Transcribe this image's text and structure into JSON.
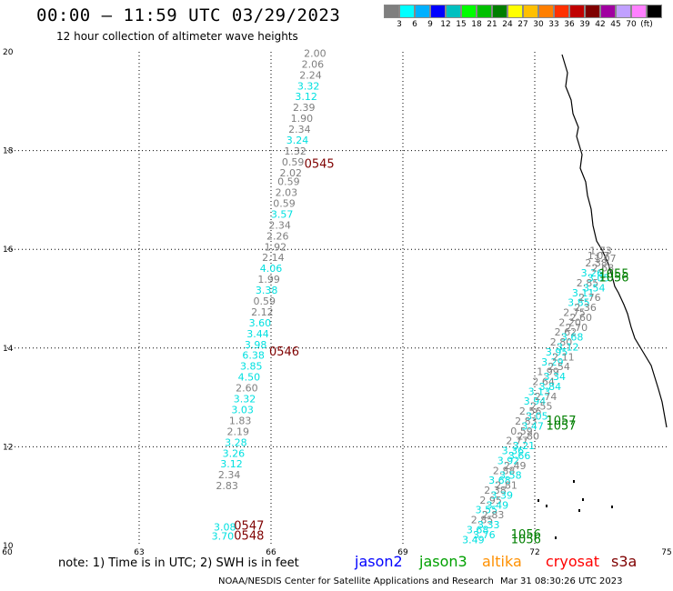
{
  "header": {
    "title": "00:00 – 11:59 UTC 03/29/2023",
    "subtitle": "12 hour collection of altimeter wave heights"
  },
  "colorbar": {
    "colors": [
      "#7f7f7f",
      "#00ffff",
      "#00b0ff",
      "#0000ff",
      "#00c0c0",
      "#00ff00",
      "#00c000",
      "#007f00",
      "#ffff00",
      "#ffc000",
      "#ff7f00",
      "#ff3000",
      "#c00000",
      "#7f0000",
      "#a000a0",
      "#c0a0ff",
      "#ff80ff",
      "#000000"
    ],
    "labels": [
      "3",
      "6",
      "9",
      "12",
      "15",
      "18",
      "21",
      "24",
      "27",
      "30",
      "33",
      "36",
      "39",
      "42",
      "45",
      "70",
      "(ft)"
    ]
  },
  "chart_data": {
    "type": "scatter",
    "xlim": [
      60,
      75
    ],
    "ylim": [
      10,
      20
    ],
    "xticks": [
      "60",
      "63",
      "66",
      "69",
      "72",
      "75"
    ],
    "yticks": [
      "10",
      "12",
      "14",
      "16",
      "18",
      "20"
    ],
    "grid": true,
    "track_labels": [
      {
        "x": 67.1,
        "y": 17.65,
        "text": "0545",
        "color": "#7f0000"
      },
      {
        "x": 66.3,
        "y": 13.85,
        "text": "0546",
        "color": "#7f0000"
      },
      {
        "x": 65.5,
        "y": 10.32,
        "text": "0547",
        "color": "#7f0000"
      },
      {
        "x": 65.5,
        "y": 10.12,
        "text": "0548",
        "color": "#7f0000"
      },
      {
        "x": 73.8,
        "y": 15.42,
        "text": "1055",
        "color": "#007f00"
      },
      {
        "x": 73.8,
        "y": 15.35,
        "text": "1056",
        "color": "#007f00"
      },
      {
        "x": 72.6,
        "y": 12.45,
        "text": "1057",
        "color": "#007f00"
      },
      {
        "x": 72.6,
        "y": 12.35,
        "text": "1057",
        "color": "#007f00"
      },
      {
        "x": 71.8,
        "y": 10.15,
        "text": "1056",
        "color": "#007f00"
      },
      {
        "x": 71.8,
        "y": 10.05,
        "text": "1056",
        "color": "#007f00"
      }
    ],
    "series": [
      {
        "color_low": "#7f7f7f",
        "color_mid": "#00e0e0",
        "points": [
          {
            "x": 67.0,
            "y": 19.9,
            "v": "2.00"
          },
          {
            "x": 66.95,
            "y": 19.68,
            "v": "2.06"
          },
          {
            "x": 66.9,
            "y": 19.46,
            "v": "2.24"
          },
          {
            "x": 66.85,
            "y": 19.24,
            "v": "3.32"
          },
          {
            "x": 66.8,
            "y": 19.02,
            "v": "3.12"
          },
          {
            "x": 66.75,
            "y": 18.8,
            "v": "2.39"
          },
          {
            "x": 66.7,
            "y": 18.58,
            "v": "1.90"
          },
          {
            "x": 66.65,
            "y": 18.36,
            "v": "2.34"
          },
          {
            "x": 66.6,
            "y": 18.14,
            "v": "3.24"
          },
          {
            "x": 66.55,
            "y": 17.92,
            "v": "1.32"
          },
          {
            "x": 66.5,
            "y": 17.7,
            "v": "0.59"
          },
          {
            "x": 66.45,
            "y": 17.48,
            "v": "2.02"
          },
          {
            "x": 66.4,
            "y": 17.3,
            "v": "0.59"
          },
          {
            "x": 66.35,
            "y": 17.08,
            "v": "2.03"
          },
          {
            "x": 66.3,
            "y": 16.86,
            "v": "0.59"
          },
          {
            "x": 66.25,
            "y": 16.64,
            "v": "3.57"
          },
          {
            "x": 66.2,
            "y": 16.42,
            "v": "2.34"
          },
          {
            "x": 66.15,
            "y": 16.2,
            "v": "2.26"
          },
          {
            "x": 66.1,
            "y": 15.98,
            "v": "1.92"
          },
          {
            "x": 66.05,
            "y": 15.76,
            "v": "2.14"
          },
          {
            "x": 66.0,
            "y": 15.54,
            "v": "4.06"
          },
          {
            "x": 65.95,
            "y": 15.32,
            "v": "1.99"
          },
          {
            "x": 65.9,
            "y": 15.1,
            "v": "3.38"
          },
          {
            "x": 65.85,
            "y": 14.88,
            "v": "0.59"
          },
          {
            "x": 65.8,
            "y": 14.66,
            "v": "2.12"
          },
          {
            "x": 65.75,
            "y": 14.44,
            "v": "3.60"
          },
          {
            "x": 65.7,
            "y": 14.22,
            "v": "3.44"
          },
          {
            "x": 65.65,
            "y": 14.0,
            "v": "3.98"
          },
          {
            "x": 65.6,
            "y": 13.78,
            "v": "6.38"
          },
          {
            "x": 65.55,
            "y": 13.56,
            "v": "3.85"
          },
          {
            "x": 65.5,
            "y": 13.34,
            "v": "4.50"
          },
          {
            "x": 65.45,
            "y": 13.12,
            "v": "2.60"
          },
          {
            "x": 65.4,
            "y": 12.9,
            "v": "3.32"
          },
          {
            "x": 65.35,
            "y": 12.68,
            "v": "3.03"
          },
          {
            "x": 65.3,
            "y": 12.46,
            "v": "1.83"
          },
          {
            "x": 65.25,
            "y": 12.24,
            "v": "2.19"
          },
          {
            "x": 65.2,
            "y": 12.02,
            "v": "3.28"
          },
          {
            "x": 65.15,
            "y": 11.8,
            "v": "3.26"
          },
          {
            "x": 65.1,
            "y": 11.58,
            "v": "3.12"
          },
          {
            "x": 65.05,
            "y": 11.36,
            "v": "2.34"
          },
          {
            "x": 65.0,
            "y": 11.14,
            "v": "2.83"
          },
          {
            "x": 64.95,
            "y": 10.3,
            "v": "3.08"
          },
          {
            "x": 64.9,
            "y": 10.12,
            "v": "3.70"
          }
        ]
      },
      {
        "color_low": "#7f7f7f",
        "color_mid": "#00e0e0",
        "points": [
          {
            "x": 73.5,
            "y": 15.9,
            "v": "1.73"
          },
          {
            "x": 73.45,
            "y": 15.8,
            "v": "1.07"
          },
          {
            "x": 73.4,
            "y": 15.65,
            "v": "2.38"
          },
          {
            "x": 73.3,
            "y": 15.45,
            "v": "3.26"
          },
          {
            "x": 73.2,
            "y": 15.25,
            "v": "2.85"
          },
          {
            "x": 73.1,
            "y": 15.05,
            "v": "3.11"
          },
          {
            "x": 73.0,
            "y": 14.85,
            "v": "3.85"
          },
          {
            "x": 72.9,
            "y": 14.65,
            "v": "2.75"
          },
          {
            "x": 72.8,
            "y": 14.45,
            "v": "2.20"
          },
          {
            "x": 72.7,
            "y": 14.25,
            "v": "2.62"
          },
          {
            "x": 72.6,
            "y": 14.05,
            "v": "2.80"
          },
          {
            "x": 72.5,
            "y": 13.85,
            "v": "3.95"
          },
          {
            "x": 72.4,
            "y": 13.65,
            "v": "3.29"
          },
          {
            "x": 72.3,
            "y": 13.45,
            "v": "1.99"
          },
          {
            "x": 72.2,
            "y": 13.25,
            "v": "2.64"
          },
          {
            "x": 72.1,
            "y": 13.05,
            "v": "3.13"
          },
          {
            "x": 72.0,
            "y": 12.85,
            "v": "3.94"
          },
          {
            "x": 71.9,
            "y": 12.65,
            "v": "2.56"
          },
          {
            "x": 71.8,
            "y": 12.45,
            "v": "2.83"
          },
          {
            "x": 71.7,
            "y": 12.25,
            "v": "0.59"
          },
          {
            "x": 71.6,
            "y": 12.05,
            "v": "2.77"
          },
          {
            "x": 71.5,
            "y": 11.85,
            "v": "3.36"
          },
          {
            "x": 71.4,
            "y": 11.65,
            "v": "3.92"
          },
          {
            "x": 71.3,
            "y": 11.45,
            "v": "2.88"
          },
          {
            "x": 71.2,
            "y": 11.25,
            "v": "3.68"
          },
          {
            "x": 71.1,
            "y": 11.05,
            "v": "2.38"
          },
          {
            "x": 71.0,
            "y": 10.85,
            "v": "2.95"
          },
          {
            "x": 70.9,
            "y": 10.65,
            "v": "3.55"
          },
          {
            "x": 70.8,
            "y": 10.45,
            "v": "2.85"
          },
          {
            "x": 70.7,
            "y": 10.25,
            "v": "3.68"
          },
          {
            "x": 70.6,
            "y": 10.05,
            "v": "3.49"
          }
        ]
      },
      {
        "color_low": "#7f7f7f",
        "color_mid": "#00e0e0",
        "points": [
          {
            "x": 73.6,
            "y": 15.75,
            "v": "1.07"
          },
          {
            "x": 73.55,
            "y": 15.55,
            "v": "2.68"
          },
          {
            "x": 73.45,
            "y": 15.35,
            "v": "3.05"
          },
          {
            "x": 73.35,
            "y": 15.15,
            "v": "3.54"
          },
          {
            "x": 73.25,
            "y": 14.95,
            "v": "2.76"
          },
          {
            "x": 73.15,
            "y": 14.75,
            "v": "2.36"
          },
          {
            "x": 73.05,
            "y": 14.55,
            "v": "2.60"
          },
          {
            "x": 72.95,
            "y": 14.35,
            "v": "2.70"
          },
          {
            "x": 72.85,
            "y": 14.15,
            "v": "3.68"
          },
          {
            "x": 72.75,
            "y": 13.95,
            "v": "3.12"
          },
          {
            "x": 72.65,
            "y": 13.75,
            "v": "2.11"
          },
          {
            "x": 72.55,
            "y": 13.55,
            "v": "2.54"
          },
          {
            "x": 72.45,
            "y": 13.35,
            "v": "3.34"
          },
          {
            "x": 72.35,
            "y": 13.15,
            "v": "3.84"
          },
          {
            "x": 72.25,
            "y": 12.95,
            "v": "2.74"
          },
          {
            "x": 72.15,
            "y": 12.75,
            "v": "2.55"
          },
          {
            "x": 72.05,
            "y": 12.55,
            "v": "3.05"
          },
          {
            "x": 71.95,
            "y": 12.35,
            "v": "3.47"
          },
          {
            "x": 71.85,
            "y": 12.15,
            "v": "2.80"
          },
          {
            "x": 71.75,
            "y": 11.95,
            "v": "3.21"
          },
          {
            "x": 71.65,
            "y": 11.75,
            "v": "3.66"
          },
          {
            "x": 71.55,
            "y": 11.55,
            "v": "2.49"
          },
          {
            "x": 71.45,
            "y": 11.35,
            "v": "3.58"
          },
          {
            "x": 71.35,
            "y": 11.15,
            "v": "2.81"
          },
          {
            "x": 71.25,
            "y": 10.95,
            "v": "3.39"
          },
          {
            "x": 71.15,
            "y": 10.75,
            "v": "3.49"
          },
          {
            "x": 71.05,
            "y": 10.55,
            "v": "2.83"
          },
          {
            "x": 70.95,
            "y": 10.35,
            "v": "3.33"
          },
          {
            "x": 70.85,
            "y": 10.15,
            "v": "3.76"
          }
        ]
      }
    ]
  },
  "footer": {
    "note": "note: 1) Time is in UTC; 2) SWH is in feet",
    "satellites": [
      {
        "name": "jason2",
        "color": "#0000ff"
      },
      {
        "name": "jason3",
        "color": "#00a000"
      },
      {
        "name": "altika",
        "color": "#ff9000"
      },
      {
        "name": "cryosat",
        "color": "#ff0000"
      },
      {
        "name": "s3a",
        "color": "#7f0000"
      }
    ],
    "credit": "NOAA/NESDIS Center for Satellite Applications and Research",
    "timestamp": "Mar 31 08:30:26 UTC 2023"
  }
}
